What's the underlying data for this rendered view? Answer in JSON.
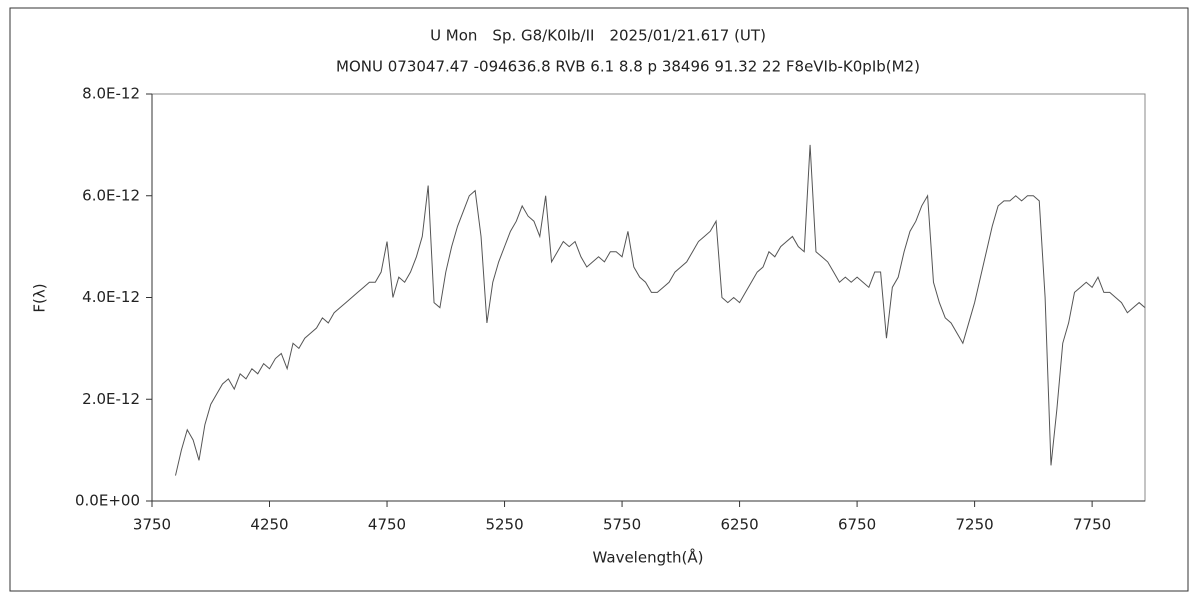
{
  "chart_data": {
    "type": "line",
    "title": "U Mon　Sp. G8/K0Ib/II　2025/01/21.617 (UT)",
    "subtitle": "MONU 073047.47 -094636.8 RVB 6.1 8.8 p 38496 91.32 22 F8eVIb-K0pIb(M2)",
    "x_label": "Wavelength(Å)",
    "y_label": "F(λ)",
    "color": "#555555",
    "xlim": [
      3750,
      7975
    ],
    "xticks": [
      3750,
      4250,
      4750,
      5250,
      5750,
      6250,
      6750,
      7250,
      7750
    ],
    "ylim": [
      0,
      8e-12
    ],
    "yticks": [
      {
        "value": 0,
        "label": "0.0E+00"
      },
      {
        "value": 2e-12,
        "label": "2.0E-12"
      },
      {
        "value": 4e-12,
        "label": "4.0E-12"
      },
      {
        "value": 6e-12,
        "label": "6.0E-12"
      },
      {
        "value": 8e-12,
        "label": "8.0E-12"
      }
    ],
    "x": [
      3850,
      3875,
      3900,
      3925,
      3950,
      3975,
      4000,
      4025,
      4050,
      4075,
      4100,
      4125,
      4150,
      4175,
      4200,
      4225,
      4250,
      4275,
      4300,
      4325,
      4350,
      4375,
      4400,
      4425,
      4450,
      4475,
      4500,
      4525,
      4550,
      4575,
      4600,
      4625,
      4650,
      4675,
      4700,
      4725,
      4750,
      4775,
      4800,
      4825,
      4850,
      4875,
      4900,
      4925,
      4950,
      4975,
      5000,
      5025,
      5050,
      5075,
      5100,
      5125,
      5150,
      5175,
      5200,
      5225,
      5250,
      5275,
      5300,
      5325,
      5350,
      5375,
      5400,
      5425,
      5450,
      5475,
      5500,
      5525,
      5550,
      5575,
      5600,
      5625,
      5650,
      5675,
      5700,
      5725,
      5750,
      5775,
      5800,
      5825,
      5850,
      5875,
      5900,
      5925,
      5950,
      5975,
      6000,
      6025,
      6050,
      6075,
      6100,
      6125,
      6150,
      6175,
      6200,
      6225,
      6250,
      6275,
      6300,
      6325,
      6350,
      6375,
      6400,
      6425,
      6450,
      6475,
      6500,
      6525,
      6550,
      6575,
      6600,
      6625,
      6650,
      6675,
      6700,
      6725,
      6750,
      6775,
      6800,
      6825,
      6850,
      6875,
      6900,
      6925,
      6950,
      6975,
      7000,
      7025,
      7050,
      7075,
      7100,
      7125,
      7150,
      7175,
      7200,
      7225,
      7250,
      7275,
      7300,
      7325,
      7350,
      7375,
      7400,
      7425,
      7450,
      7475,
      7500,
      7525,
      7550,
      7575,
      7600,
      7625,
      7650,
      7675,
      7700,
      7725,
      7750,
      7775,
      7800,
      7825,
      7850,
      7875,
      7900,
      7925,
      7950,
      7975
    ],
    "values": [
      5e-13,
      1e-12,
      1.4e-12,
      1.2e-12,
      8e-13,
      1.5e-12,
      1.9e-12,
      2.1e-12,
      2.3e-12,
      2.4e-12,
      2.2e-12,
      2.5e-12,
      2.4e-12,
      2.6e-12,
      2.5e-12,
      2.7e-12,
      2.6e-12,
      2.8e-12,
      2.9e-12,
      2.6e-12,
      3.1e-12,
      3e-12,
      3.2e-12,
      3.3e-12,
      3.4e-12,
      3.6e-12,
      3.5e-12,
      3.7e-12,
      3.8e-12,
      3.9e-12,
      4e-12,
      4.1e-12,
      4.2e-12,
      4.3e-12,
      4.3e-12,
      4.5e-12,
      5.1e-12,
      4e-12,
      4.4e-12,
      4.3e-12,
      4.5e-12,
      4.8e-12,
      5.2e-12,
      6.2e-12,
      3.9e-12,
      3.8e-12,
      4.5e-12,
      5e-12,
      5.4e-12,
      5.7e-12,
      6e-12,
      6.1e-12,
      5.2e-12,
      3.5e-12,
      4.3e-12,
      4.7e-12,
      5e-12,
      5.3e-12,
      5.5e-12,
      5.8e-12,
      5.6e-12,
      5.5e-12,
      5.2e-12,
      6e-12,
      4.7e-12,
      4.9e-12,
      5.1e-12,
      5e-12,
      5.1e-12,
      4.8e-12,
      4.6e-12,
      4.7e-12,
      4.8e-12,
      4.7e-12,
      4.9e-12,
      4.9e-12,
      4.8e-12,
      5.3e-12,
      4.6e-12,
      4.4e-12,
      4.3e-12,
      4.1e-12,
      4.1e-12,
      4.2e-12,
      4.3e-12,
      4.5e-12,
      4.6e-12,
      4.7e-12,
      4.9e-12,
      5.1e-12,
      5.2e-12,
      5.3e-12,
      5.5e-12,
      4e-12,
      3.9e-12,
      4e-12,
      3.9e-12,
      4.1e-12,
      4.3e-12,
      4.5e-12,
      4.6e-12,
      4.9e-12,
      4.8e-12,
      5e-12,
      5.1e-12,
      5.2e-12,
      5e-12,
      4.9e-12,
      7e-12,
      4.9e-12,
      4.8e-12,
      4.7e-12,
      4.5e-12,
      4.3e-12,
      4.4e-12,
      4.3e-12,
      4.4e-12,
      4.3e-12,
      4.2e-12,
      4.5e-12,
      4.5e-12,
      3.2e-12,
      4.2e-12,
      4.4e-12,
      4.9e-12,
      5.3e-12,
      5.5e-12,
      5.8e-12,
      6e-12,
      4.3e-12,
      3.9e-12,
      3.6e-12,
      3.5e-12,
      3.3e-12,
      3.1e-12,
      3.5e-12,
      3.9e-12,
      4.4e-12,
      4.9e-12,
      5.4e-12,
      5.8e-12,
      5.9e-12,
      5.9e-12,
      6e-12,
      5.9e-12,
      6e-12,
      6e-12,
      5.9e-12,
      4e-12,
      7e-13,
      1.8e-12,
      3.1e-12,
      3.5e-12,
      4.1e-12,
      4.2e-12,
      4.3e-12,
      4.2e-12,
      4.4e-12,
      4.1e-12,
      4.1e-12,
      4e-12,
      3.9e-12,
      3.7e-12,
      3.8e-12,
      3.9e-12,
      3.8e-12
    ]
  }
}
